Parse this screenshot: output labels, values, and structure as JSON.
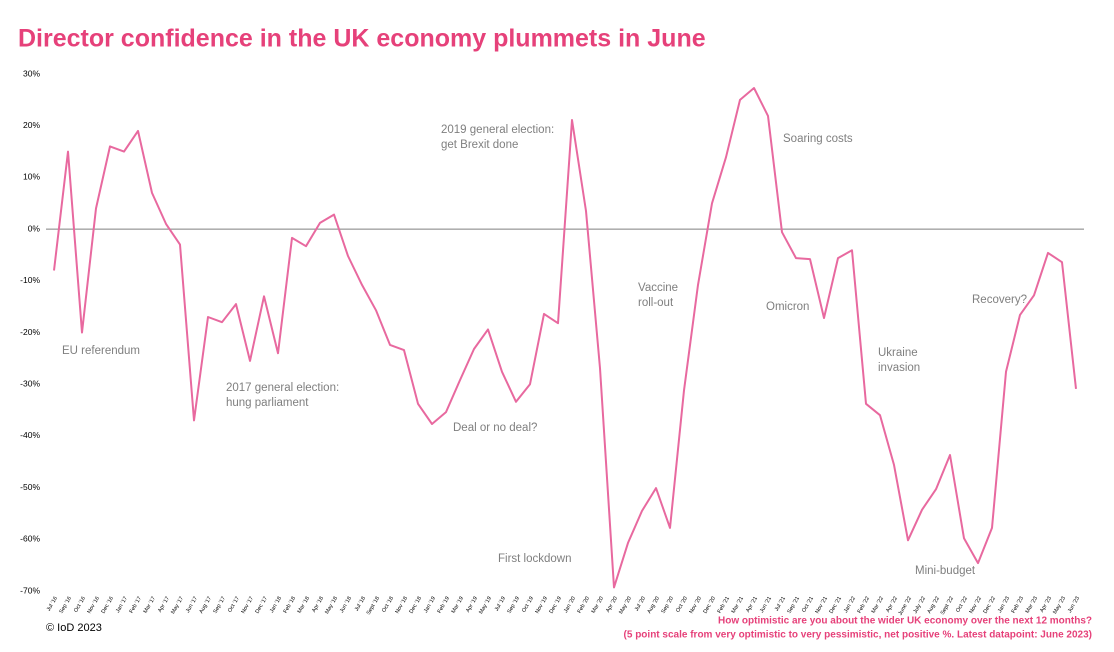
{
  "chart_data": {
    "type": "line",
    "title": "Director confidence in the UK economy plummets in June",
    "categories": [
      "Jul '16",
      "Sep '16",
      "Oct '16",
      "Nov '16",
      "Dec '16",
      "Jan '17",
      "Feb '17",
      "Mar '17",
      "Apr '17",
      "May '17",
      "Jun '17",
      "Aug '17",
      "Sep '17",
      "Oct '17",
      "Nov '17",
      "Dec '17",
      "Jan '18",
      "Feb '18",
      "Mar '18",
      "Apr '18",
      "May '18",
      "Jun '18",
      "Jul '18",
      "Sept '18",
      "Oct '18",
      "Nov '18",
      "Dec '18",
      "Jan '19",
      "Feb '19",
      "Mar '19",
      "Apr '19",
      "May '19",
      "Jul '19",
      "Sep '19",
      "Oct '19",
      "Nov '19",
      "Dec '19",
      "Jan '20",
      "Feb '20",
      "Mar '20",
      "Apr '20",
      "May '20",
      "Jul '20",
      "Aug '20",
      "Sep '20",
      "Oct '20",
      "Nov '20",
      "Dec '20",
      "Feb '21",
      "Mar '21",
      "Apr '21",
      "Jun '21",
      "Jul '21",
      "Sep '21",
      "Oct '21",
      "Nov '21",
      "Dec '21",
      "Jan '22",
      "Feb '22",
      "Mar '22",
      "Apr '22",
      "June '22",
      "July '22",
      "Aug '22",
      "Sept '22",
      "Oct '22",
      "Nov '22",
      "Dec '22",
      "Jan '23",
      "Feb '23",
      "Mar '23",
      "Apr '23",
      "May '23",
      "Jun '23"
    ],
    "series": [
      {
        "name": "Director confidence",
        "color": "#e8699f",
        "values": [
          -8,
          15,
          -20,
          4,
          16,
          15,
          19,
          7,
          1,
          -3,
          -37,
          -17,
          -18,
          -14.5,
          -25.5,
          -13,
          -24,
          -1.7,
          -3.3,
          1.2,
          2.8,
          -5.2,
          -10.8,
          -15.7,
          -22.4,
          -23.4,
          -33.8,
          -37.7,
          -35.4,
          -29.2,
          -23.2,
          -19.4,
          -27.6,
          -33.4,
          -30,
          -16.4,
          -18.2,
          21.1,
          3.5,
          -26.9,
          -69.3,
          -60.7,
          -54.5,
          -50.1,
          -57.8,
          -31.2,
          -10.8,
          5,
          13.9,
          25,
          27.3,
          21.9,
          -0.6,
          -5.6,
          -5.8,
          -17.2,
          -5.6,
          -4.1,
          -33.8,
          -36,
          -45.6,
          -60.2,
          -54.3,
          -50.3,
          -43.7,
          -59.8,
          -64.6,
          -57.8,
          -27.6,
          -16.6,
          -12.8,
          -4.6,
          -6.4,
          -30.9
        ]
      }
    ],
    "ylim": [
      -70,
      30
    ],
    "yticks": [
      {
        "value": 30,
        "label": "30%"
      },
      {
        "value": 20,
        "label": "20%"
      },
      {
        "value": 10,
        "label": "10%"
      },
      {
        "value": 0,
        "label": "0%"
      },
      {
        "value": -10,
        "label": "-10%"
      },
      {
        "value": -20,
        "label": "-20%"
      },
      {
        "value": -30,
        "label": "-30%"
      },
      {
        "value": -40,
        "label": "-40%"
      },
      {
        "value": -50,
        "label": "-50%"
      },
      {
        "value": -60,
        "label": "-60%"
      },
      {
        "value": -70,
        "label": "-70%"
      }
    ],
    "annotations": [
      [
        "EU referendum"
      ],
      [
        "2017 general election:",
        "hung parliament"
      ],
      [
        "Deal or no deal?"
      ],
      [
        "2019 general election:",
        "get Brexit done"
      ],
      [
        "First lockdown"
      ],
      [
        "Vaccine",
        "roll-out"
      ],
      [
        "Soaring costs"
      ],
      [
        "Omicron"
      ],
      [
        "Ukraine",
        "invasion"
      ],
      [
        "Mini-budget"
      ],
      [
        "Recovery?"
      ]
    ],
    "copyright": "© IoD 2023",
    "note": [
      "How optimistic are you about the wider UK economy over the next 12 months?",
      "(5 point scale from very optimistic to very pessimistic, net positive %. Latest datapoint: June 2023)"
    ]
  }
}
